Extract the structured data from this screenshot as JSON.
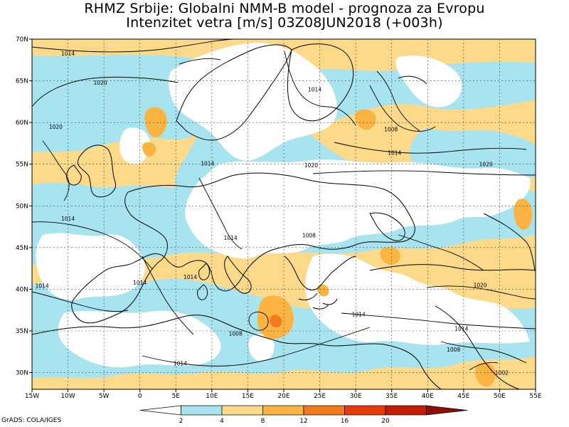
{
  "title_line1": "RHMZ Srbije: Globalni NMM-B model - prognoza za Evropu",
  "title_line2": "Intenzitet vetra [m/s] 03Z08JUN2018 (+003h)",
  "footer": "GrADS: COLA/IGES",
  "axes": {
    "lon_labels": [
      "15W",
      "10W",
      "5W",
      "0",
      "5E",
      "10E",
      "15E",
      "20E",
      "25E",
      "30E",
      "35E",
      "40E",
      "45E",
      "50E",
      "55E"
    ],
    "lat_labels": [
      "70N",
      "65N",
      "60N",
      "55N",
      "50N",
      "45N",
      "40N",
      "35N",
      "30N"
    ]
  },
  "legend": {
    "labels": [
      "2",
      "4",
      "8",
      "12",
      "16",
      "20"
    ],
    "colors": [
      "#ffffff",
      "#a8e4f0",
      "#fdd98a",
      "#fbb341",
      "#f57a1e",
      "#e63a0b",
      "#c41b05",
      "#8d0e02"
    ]
  },
  "isobars": [
    {
      "label": "1014",
      "lon": -10,
      "lat": 68.3
    },
    {
      "label": "1020",
      "lon": -5.5,
      "lat": 64.8
    },
    {
      "label": "1020",
      "lon": -11.7,
      "lat": 59.5
    },
    {
      "label": "1014",
      "lon": -10,
      "lat": 48.5
    },
    {
      "label": "1014",
      "lon": -13.6,
      "lat": 40.4
    },
    {
      "label": "1014",
      "lon": 0,
      "lat": 40.8
    },
    {
      "label": "1014",
      "lon": 7,
      "lat": 41.5
    },
    {
      "label": "1014",
      "lon": 12.6,
      "lat": 46.2
    },
    {
      "label": "1014",
      "lon": 9.4,
      "lat": 55.1
    },
    {
      "label": "1014",
      "lon": 24.3,
      "lat": 64.0
    },
    {
      "label": "1008",
      "lon": 34.9,
      "lat": 59.2
    },
    {
      "label": "1014",
      "lon": 35.4,
      "lat": 56.4
    },
    {
      "label": "1020",
      "lon": 23.8,
      "lat": 54.9
    },
    {
      "label": "1020",
      "lon": 48.1,
      "lat": 55.0
    },
    {
      "label": "1008",
      "lon": 23.5,
      "lat": 46.5
    },
    {
      "label": "1020",
      "lon": 47.3,
      "lat": 40.5
    },
    {
      "label": "1014",
      "lon": 30.4,
      "lat": 37.0
    },
    {
      "label": "1014",
      "lon": 44.7,
      "lat": 35.3
    },
    {
      "label": "1008",
      "lon": 43.6,
      "lat": 32.8
    },
    {
      "label": "1008",
      "lon": 13.3,
      "lat": 34.7
    },
    {
      "label": "1014",
      "lon": 5.6,
      "lat": 31.1
    },
    {
      "label": "1002",
      "lon": 50.3,
      "lat": 30.0
    }
  ]
}
